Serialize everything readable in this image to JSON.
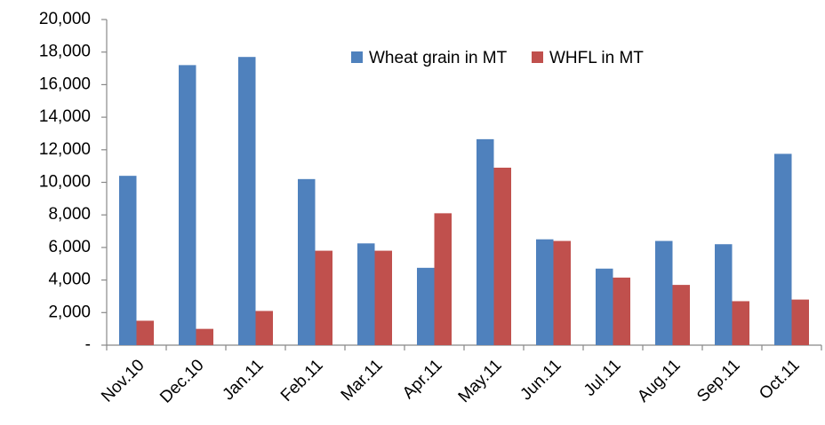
{
  "chart_data": {
    "type": "bar",
    "categories": [
      "Nov.10",
      "Dec.10",
      "Jan.11",
      "Feb.11",
      "Mar.11",
      "Apr.11",
      "May.11",
      "Jun.11",
      "Jul.11",
      "Aug.11",
      "Sep.11",
      "Oct.11"
    ],
    "series": [
      {
        "name": "Wheat grain in MT",
        "color": "#4f81bd",
        "values": [
          10400,
          17200,
          17700,
          10200,
          6250,
          4750,
          12650,
          6500,
          4700,
          6400,
          6200,
          11750
        ]
      },
      {
        "name": "WHFL in MT",
        "color": "#c0504d",
        "values": [
          1500,
          1000,
          2100,
          5800,
          5800,
          8100,
          10900,
          6400,
          4150,
          3700,
          2700,
          2800
        ]
      }
    ],
    "ylim": [
      0,
      20000
    ],
    "yticks": [
      {
        "value": 0,
        "label": "-"
      },
      {
        "value": 2000,
        "label": "2,000"
      },
      {
        "value": 4000,
        "label": "4,000"
      },
      {
        "value": 6000,
        "label": "6,000"
      },
      {
        "value": 8000,
        "label": "8,000"
      },
      {
        "value": 10000,
        "label": "10,000"
      },
      {
        "value": 12000,
        "label": "12,000"
      },
      {
        "value": 14000,
        "label": "14,000"
      },
      {
        "value": 16000,
        "label": "16,000"
      },
      {
        "value": 18000,
        "label": "18,000"
      },
      {
        "value": 20000,
        "label": "20,000"
      }
    ],
    "grid": false,
    "legend": "top"
  }
}
